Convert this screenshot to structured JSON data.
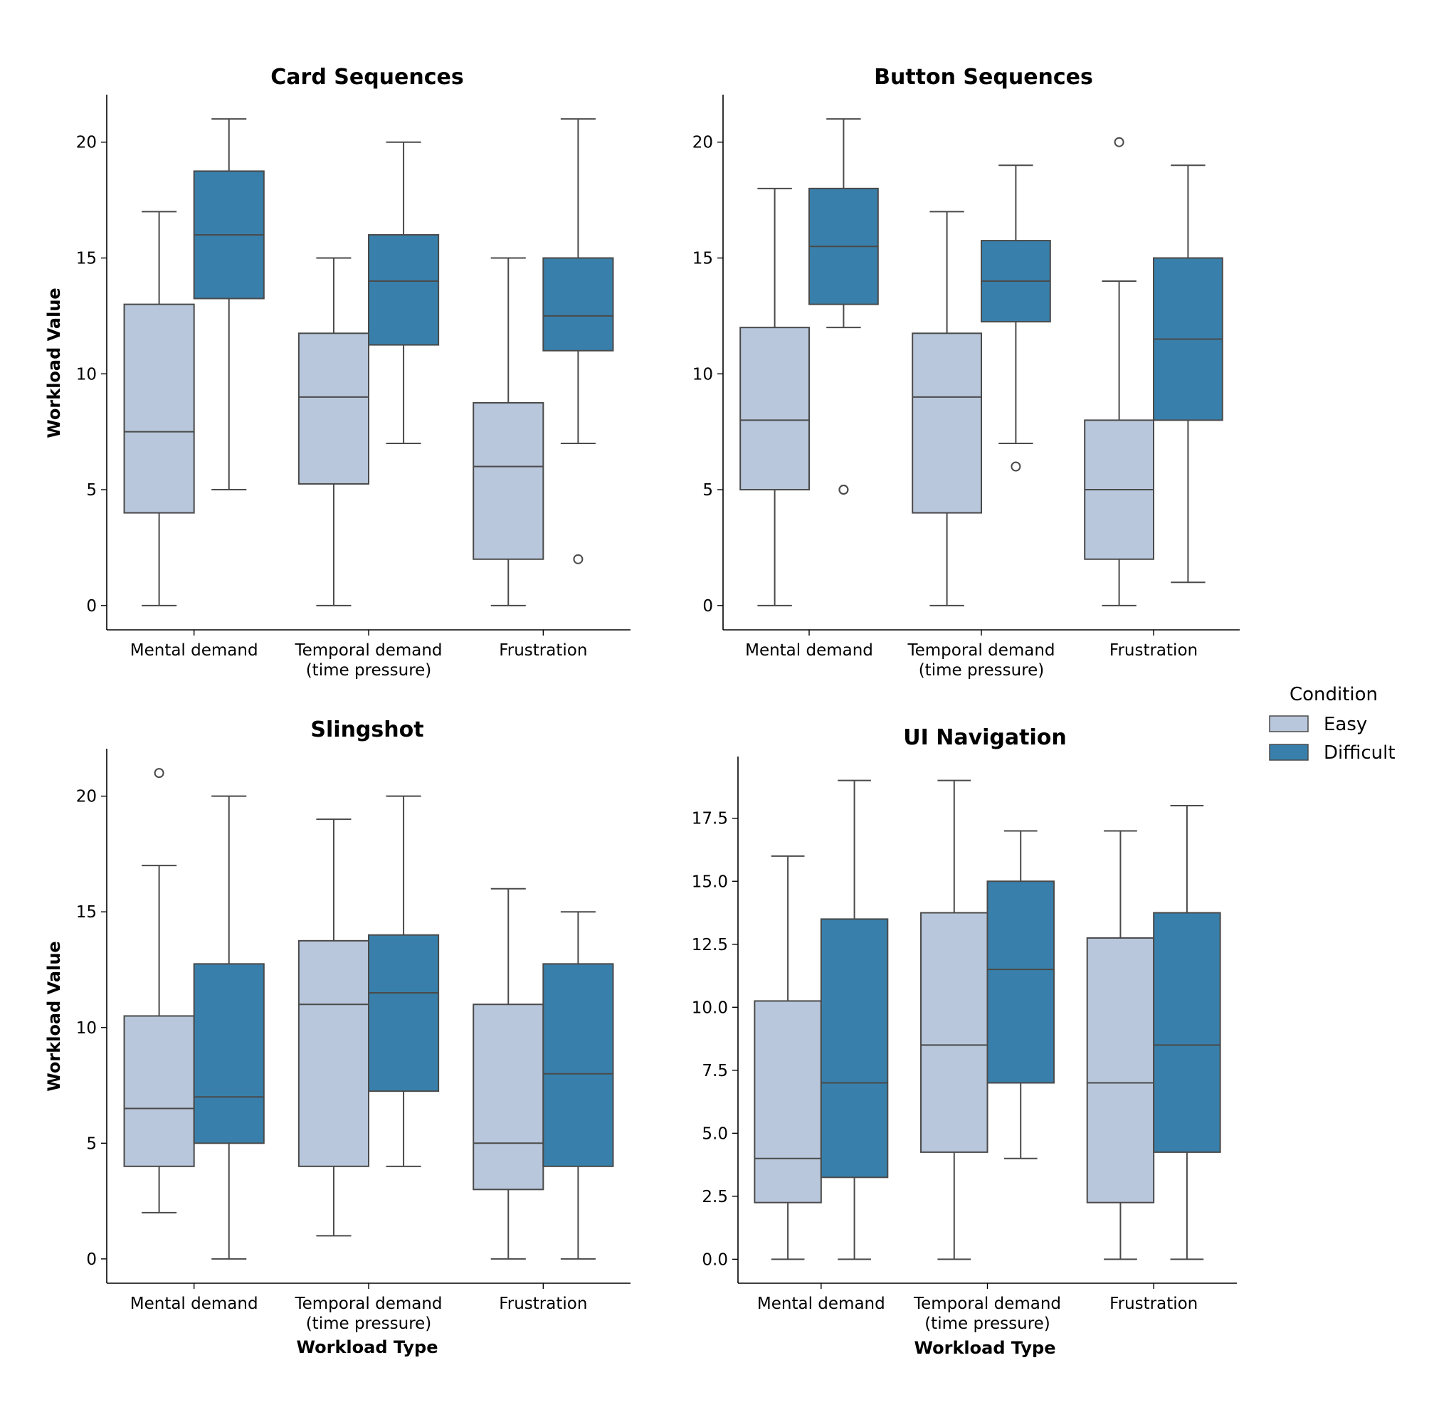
{
  "chart_data": [
    {
      "type": "box",
      "title": "Card Sequences",
      "ylabel": "Workload Value",
      "xlabel": "",
      "categories": [
        "Mental demand",
        "Temporal demand\n(time pressure)",
        "Frustration"
      ],
      "yticks": [
        0,
        5,
        10,
        15,
        20
      ],
      "ylim": [
        -1.05,
        22.05
      ],
      "series": [
        {
          "name": "Easy",
          "boxes": [
            {
              "whislo": 0,
              "q1": 4,
              "med": 7.5,
              "q3": 13,
              "whishi": 17,
              "fliers": []
            },
            {
              "whislo": 0,
              "q1": 5.25,
              "med": 9,
              "q3": 11.75,
              "whishi": 15,
              "fliers": []
            },
            {
              "whislo": 0,
              "q1": 2,
              "med": 6,
              "q3": 8.75,
              "whishi": 15,
              "fliers": []
            }
          ]
        },
        {
          "name": "Difficult",
          "boxes": [
            {
              "whislo": 5,
              "q1": 13.25,
              "med": 16,
              "q3": 18.75,
              "whishi": 21,
              "fliers": []
            },
            {
              "whislo": 7,
              "q1": 11.25,
              "med": 14,
              "q3": 16,
              "whishi": 20,
              "fliers": []
            },
            {
              "whislo": 7,
              "q1": 11,
              "med": 12.5,
              "q3": 15,
              "whishi": 21,
              "fliers": [
                2
              ]
            }
          ]
        }
      ]
    },
    {
      "type": "box",
      "title": "Button Sequences",
      "ylabel": "",
      "xlabel": "",
      "categories": [
        "Mental demand",
        "Temporal demand\n(time pressure)",
        "Frustration"
      ],
      "yticks": [
        0,
        5,
        10,
        15,
        20
      ],
      "ylim": [
        -1.05,
        22.05
      ],
      "series": [
        {
          "name": "Easy",
          "boxes": [
            {
              "whislo": 0,
              "q1": 5,
              "med": 8,
              "q3": 12,
              "whishi": 18,
              "fliers": []
            },
            {
              "whislo": 0,
              "q1": 4,
              "med": 9,
              "q3": 11.75,
              "whishi": 17,
              "fliers": []
            },
            {
              "whislo": 0,
              "q1": 2,
              "med": 5,
              "q3": 8,
              "whishi": 14,
              "fliers": [
                20
              ]
            }
          ]
        },
        {
          "name": "Difficult",
          "boxes": [
            {
              "whislo": 12,
              "q1": 13,
              "med": 15.5,
              "q3": 18,
              "whishi": 21,
              "fliers": [
                5,
                5
              ]
            },
            {
              "whislo": 7,
              "q1": 12.25,
              "med": 14,
              "q3": 15.75,
              "whishi": 19,
              "fliers": [
                6
              ]
            },
            {
              "whislo": 1,
              "q1": 8,
              "med": 11.5,
              "q3": 15,
              "whishi": 19,
              "fliers": []
            }
          ]
        }
      ]
    },
    {
      "type": "box",
      "title": "Slingshot",
      "ylabel": "Workload Value",
      "xlabel": "Workload Type",
      "categories": [
        "Mental demand",
        "Temporal demand\n(time pressure)",
        "Frustration"
      ],
      "yticks": [
        0,
        5,
        10,
        15,
        20
      ],
      "ylim": [
        -1.05,
        22.05
      ],
      "series": [
        {
          "name": "Easy",
          "boxes": [
            {
              "whislo": 2,
              "q1": 4,
              "med": 6.5,
              "q3": 10.5,
              "whishi": 17,
              "fliers": [
                21
              ]
            },
            {
              "whislo": 1,
              "q1": 4,
              "med": 11,
              "q3": 13.75,
              "whishi": 19,
              "fliers": []
            },
            {
              "whislo": 0,
              "q1": 3,
              "med": 5,
              "q3": 11,
              "whishi": 16,
              "fliers": []
            }
          ]
        },
        {
          "name": "Difficult",
          "boxes": [
            {
              "whislo": 0,
              "q1": 5,
              "med": 7,
              "q3": 12.75,
              "whishi": 20,
              "fliers": []
            },
            {
              "whislo": 4,
              "q1": 7.25,
              "med": 11.5,
              "q3": 14,
              "whishi": 20,
              "fliers": []
            },
            {
              "whislo": 0,
              "q1": 4,
              "med": 8,
              "q3": 12.75,
              "whishi": 15,
              "fliers": []
            }
          ]
        }
      ]
    },
    {
      "type": "box",
      "title": "UI Navigation",
      "ylabel": "",
      "xlabel": "Workload Type",
      "categories": [
        "Mental demand",
        "Temporal demand\n(time pressure)",
        "Frustration"
      ],
      "yticks": [
        0,
        2.5,
        5,
        7.5,
        10,
        12.5,
        15,
        17.5
      ],
      "ytick_labels": [
        "0.0",
        "2.5",
        "5.0",
        "7.5",
        "10.0",
        "12.5",
        "15.0",
        "17.5"
      ],
      "ylim": [
        -0.95,
        19.95
      ],
      "series": [
        {
          "name": "Easy",
          "boxes": [
            {
              "whislo": 0,
              "q1": 2.25,
              "med": 4,
              "q3": 10.25,
              "whishi": 16,
              "fliers": []
            },
            {
              "whislo": 0,
              "q1": 4.25,
              "med": 8.5,
              "q3": 13.75,
              "whishi": 19,
              "fliers": []
            },
            {
              "whislo": 0,
              "q1": 2.25,
              "med": 7,
              "q3": 12.75,
              "whishi": 17,
              "fliers": []
            }
          ]
        },
        {
          "name": "Difficult",
          "boxes": [
            {
              "whislo": 0,
              "q1": 3.25,
              "med": 7,
              "q3": 13.5,
              "whishi": 19,
              "fliers": []
            },
            {
              "whislo": 4,
              "q1": 7,
              "med": 11.5,
              "q3": 15,
              "whishi": 17,
              "fliers": []
            },
            {
              "whislo": 0,
              "q1": 4.25,
              "med": 8.5,
              "q3": 13.75,
              "whishi": 18,
              "fliers": []
            }
          ]
        }
      ]
    }
  ],
  "legend": {
    "title": "Condition",
    "entries": [
      {
        "label": "Easy",
        "color": "#b9c7dc"
      },
      {
        "label": "Difficult",
        "color": "#3880ab"
      }
    ]
  },
  "colors": {
    "easy": "#b9c7dc",
    "difficult": "#3880ab",
    "line": "#4a4a4a"
  }
}
